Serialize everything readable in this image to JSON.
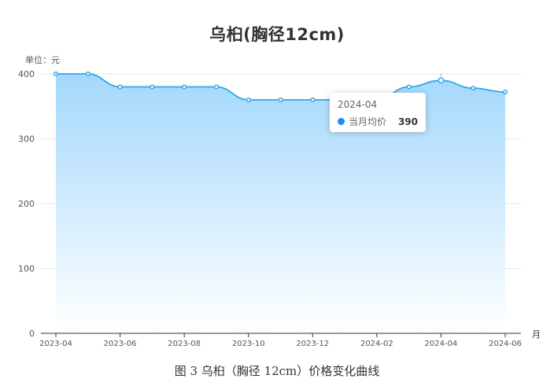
{
  "title": "乌桕(胸径12cm)",
  "unit_label": "单位：元",
  "x_unit": "月",
  "caption": "图 3  乌桕（胸径 12cm）价格变化曲线",
  "colors": {
    "line": "#2fa7ea",
    "area_top": "#a3d8fc",
    "area_bottom": "#ffffff",
    "marker_fill": "#ffffff",
    "tooltip_dot": "#1890ff"
  },
  "tooltip": {
    "title": "2024-04",
    "series_name": "当月均价",
    "value": "390"
  },
  "chart_data": {
    "type": "area",
    "x": [
      "2023-04",
      "2023-05",
      "2023-06",
      "2023-07",
      "2023-08",
      "2023-09",
      "2023-10",
      "2023-11",
      "2023-12",
      "2024-01",
      "2024-02",
      "2024-03",
      "2024-04",
      "2024-05",
      "2024-06"
    ],
    "x_tick_labels": [
      "2023-04",
      "2023-06",
      "2023-08",
      "2023-10",
      "2023-12",
      "2024-02",
      "2024-04",
      "2024-06"
    ],
    "series": [
      {
        "name": "当月均价",
        "values": [
          400,
          400,
          380,
          380,
          380,
          380,
          360,
          360,
          360,
          360,
          360,
          380,
          390,
          378,
          372
        ]
      }
    ],
    "ylim": [
      0,
      400
    ],
    "y_ticks": [
      0,
      100,
      200,
      300,
      400
    ],
    "grid": true,
    "highlighted_x": "2024-04"
  }
}
